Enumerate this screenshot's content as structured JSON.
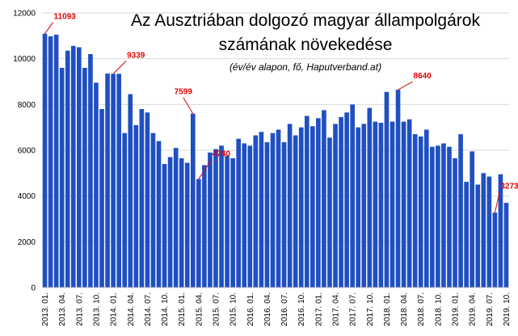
{
  "chart_data": {
    "type": "bar",
    "title_line1": "Az Ausztriában dolgozó magyar állampolgárok",
    "title_line2": "számának növekedése",
    "subtitle": "(év/év alapon, fő, Haputverband.at)",
    "xlabel": "",
    "ylabel": "",
    "ylim": [
      0,
      12000
    ],
    "yticks": [
      0,
      2000,
      4000,
      6000,
      8000,
      10000,
      12000
    ],
    "grid": true,
    "bar_color": "#1f4fc2",
    "grid_color": "#d9d9d9",
    "annotation_color": "#e00000",
    "x_tick_labels": [
      "2013. 01.",
      "2013. 04.",
      "2013. 07.",
      "2013. 10.",
      "2014. 01.",
      "2014. 04.",
      "2014. 07.",
      "2014. 10.",
      "2015. 01.",
      "2015. 04.",
      "2015. 07.",
      "2015. 10.",
      "2016. 01.",
      "2016. 04.",
      "2016. 07.",
      "2016. 10.",
      "2017. 01.",
      "2017. 04.",
      "2017. 07.",
      "2017. 10.",
      "2018. 01.",
      "2018. 04.",
      "2018. 07.",
      "2018. 10.",
      "2019. 01.",
      "2019. 04.",
      "2019. 07.",
      "2019. 10."
    ],
    "values": [
      11093,
      10980,
      11050,
      9600,
      10350,
      10560,
      10500,
      9600,
      10200,
      8950,
      7800,
      9350,
      9339,
      9339,
      6750,
      8450,
      7100,
      7800,
      7650,
      6750,
      6400,
      5400,
      5700,
      6100,
      5650,
      5450,
      7599,
      4740,
      5350,
      5900,
      6050,
      6200,
      5750,
      5650,
      6500,
      6300,
      6200,
      6650,
      6800,
      6350,
      6750,
      6900,
      6350,
      7150,
      6650,
      7000,
      7500,
      7050,
      7400,
      7750,
      6550,
      7150,
      7450,
      7650,
      8000,
      7000,
      7150,
      7850,
      7250,
      7200,
      8550,
      7250,
      8640,
      7250,
      7350,
      6700,
      6600,
      6900,
      6150,
      6200,
      6300,
      6150,
      5650,
      6700,
      4620,
      5950,
      4500,
      5000,
      4850,
      3273,
      4950,
      3700
    ],
    "annotations": [
      {
        "label": "11093",
        "index": 0
      },
      {
        "label": "9339",
        "index": 12
      },
      {
        "label": "7599",
        "index": 26
      },
      {
        "label": "4740",
        "index": 27
      },
      {
        "label": "8640",
        "index": 62
      },
      {
        "label": "3273",
        "index": 79
      }
    ]
  }
}
